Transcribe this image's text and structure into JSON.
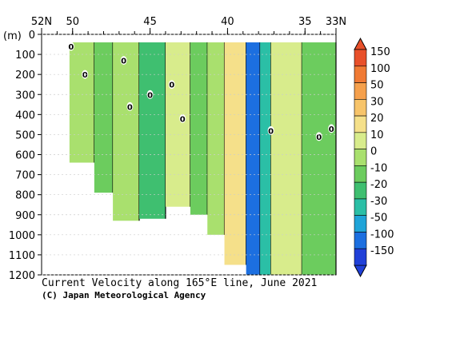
{
  "chart_data": {
    "type": "heatmap",
    "title": "Current Velocity along 165°E line, June 2021",
    "credit": "(C) Japan Meteorological Agency",
    "y_unit": "(m)",
    "x_ticks": [
      {
        "lat": 52,
        "label": "52N"
      },
      {
        "lat": 50,
        "label": "50"
      },
      {
        "lat": 45,
        "label": "45"
      },
      {
        "lat": 40,
        "label": "40"
      },
      {
        "lat": 35,
        "label": "35"
      },
      {
        "lat": 33,
        "label": "33N"
      }
    ],
    "xlim": [
      52,
      33
    ],
    "ylim": [
      0,
      1200
    ],
    "y_ticks": [
      0,
      100,
      200,
      300,
      400,
      500,
      600,
      700,
      800,
      900,
      1000,
      1100,
      1200
    ],
    "colorbar": {
      "levels": [
        150,
        100,
        50,
        30,
        20,
        10,
        0,
        -10,
        -20,
        -30,
        -50,
        -100,
        -150
      ],
      "labels": [
        "150",
        "100",
        "50",
        "30",
        "20",
        "10",
        "0",
        "-10",
        "-20",
        "-30",
        "-50",
        "-100",
        "-150"
      ],
      "colors": [
        "#e8502a",
        "#f07a34",
        "#f5a04c",
        "#f7c46a",
        "#f5e08a",
        "#d8ec8c",
        "#a9e06e",
        "#6ccc5e",
        "#3fbf70",
        "#2bbfa6",
        "#1fa4d8",
        "#1c6fe0",
        "#2040d8"
      ]
    },
    "zero_contour_label": "0",
    "sections": [
      {
        "lat_start": 50.2,
        "lat_end": 48.6,
        "depth_max": 640,
        "value": 0
      },
      {
        "lat_start": 48.6,
        "lat_end": 47.4,
        "depth_max": 790,
        "value": -10
      },
      {
        "lat_start": 47.4,
        "lat_end": 45.7,
        "depth_max": 930,
        "value": 5
      },
      {
        "lat_start": 45.7,
        "lat_end": 44.0,
        "depth_max": 920,
        "value": -12
      },
      {
        "lat_start": 44.0,
        "lat_end": 42.4,
        "depth_max": 860,
        "value": 10
      },
      {
        "lat_start": 42.4,
        "lat_end": 41.3,
        "depth_max": 900,
        "value": -8
      },
      {
        "lat_start": 41.3,
        "lat_end": 40.2,
        "depth_max": 1000,
        "value": 5
      },
      {
        "lat_start": 40.2,
        "lat_end": 38.8,
        "depth_max": 1150,
        "value": 25
      },
      {
        "lat_start": 38.8,
        "lat_end": 37.9,
        "depth_max": 1200,
        "value": -60
      },
      {
        "lat_start": 37.9,
        "lat_end": 37.2,
        "depth_max": 1200,
        "value": -25
      },
      {
        "lat_start": 37.2,
        "lat_end": 35.2,
        "depth_max": 1200,
        "value": 15
      },
      {
        "lat_start": 35.2,
        "lat_end": 33.0,
        "depth_max": 1200,
        "value": -5
      }
    ]
  }
}
